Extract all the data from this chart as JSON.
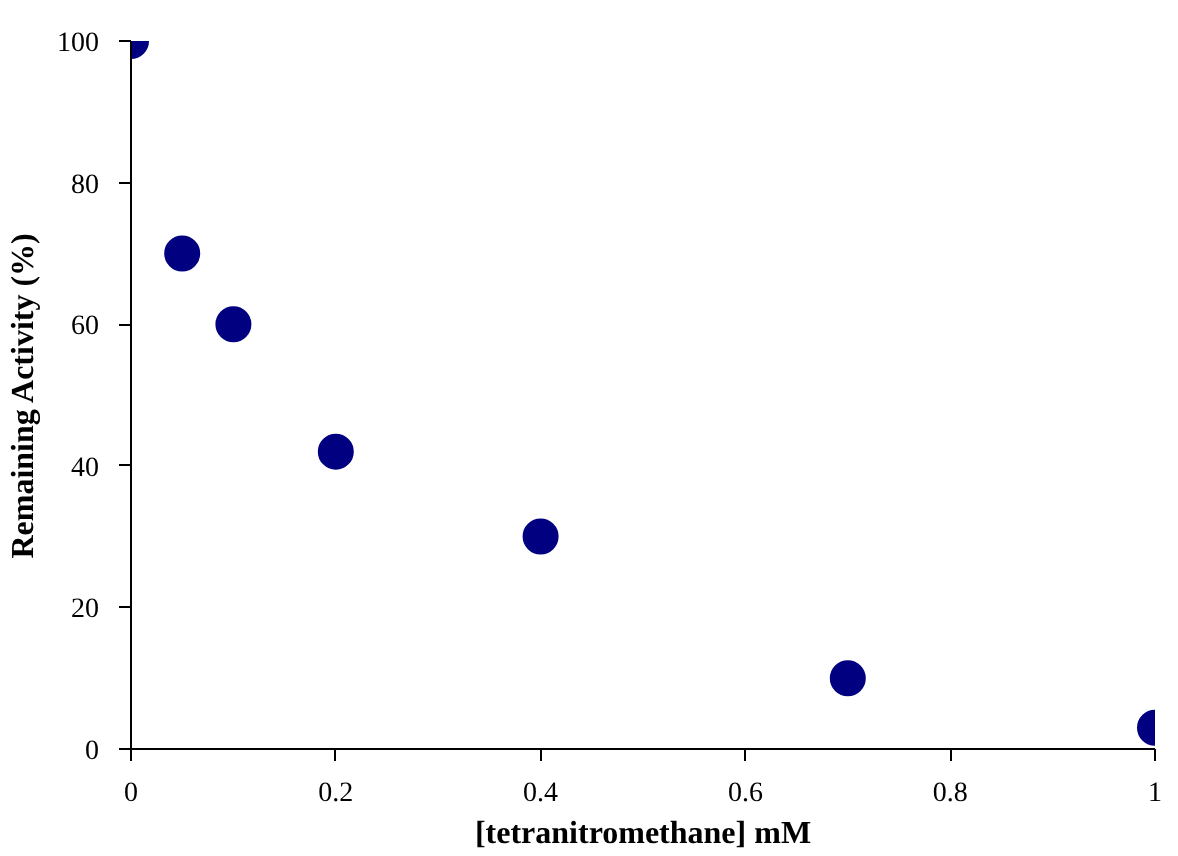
{
  "chart_data": {
    "type": "scatter",
    "xlabel": "[tetranitromethane] mM",
    "ylabel": "Remaining Activity (%)",
    "x": [
      0,
      0.05,
      0.1,
      0.2,
      0.4,
      0.7,
      1
    ],
    "series": [
      {
        "color": "#000080",
        "values": [
          100,
          70,
          60,
          42,
          30,
          10,
          3
        ]
      }
    ],
    "xlim": [
      0,
      1
    ],
    "ylim": [
      0,
      100
    ],
    "xticks": [
      0,
      0.2,
      0.4,
      0.6,
      0.8,
      1
    ],
    "yticks": [
      0,
      20,
      40,
      60,
      80,
      100
    ],
    "grid": false,
    "marker": "circle"
  }
}
